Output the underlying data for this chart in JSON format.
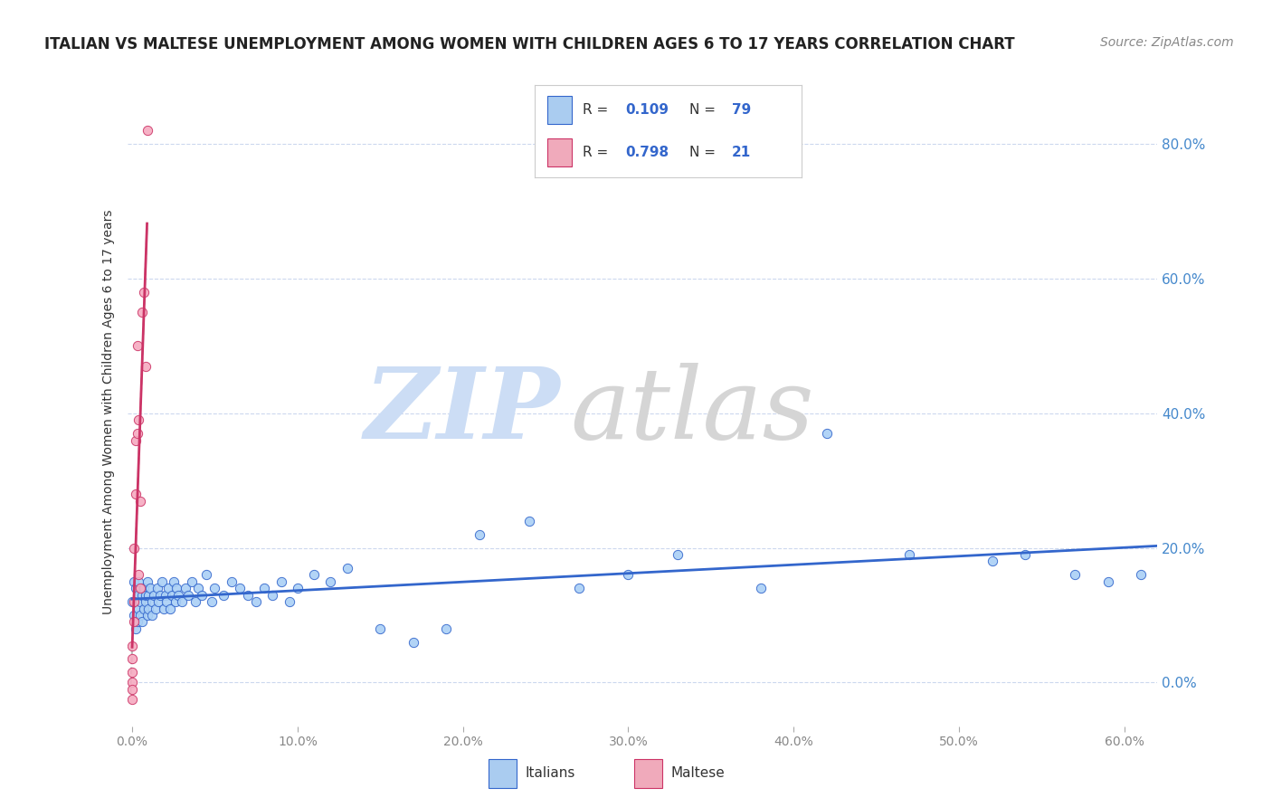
{
  "title": "ITALIAN VS MALTESE UNEMPLOYMENT AMONG WOMEN WITH CHILDREN AGES 6 TO 17 YEARS CORRELATION CHART",
  "source": "Source: ZipAtlas.com",
  "ylabel": "Unemployment Among Women with Children Ages 6 to 17 years",
  "legend_color1": "#aaccf0",
  "legend_color2": "#f0aabb",
  "scatter_color1": "#aad0f5",
  "scatter_color2": "#f5aac0",
  "line_color1": "#3366cc",
  "line_color2": "#cc3366",
  "dashed_line_color": "#bbbbbb",
  "watermark_zip_color": "#ccddf5",
  "watermark_atlas_color": "#d5d5d5",
  "background_color": "#ffffff",
  "grid_color": "#ccd8ee",
  "title_fontsize": 12,
  "source_fontsize": 10,
  "right_tick_color": "#4488cc",
  "xlim": [
    -0.003,
    0.62
  ],
  "ylim": [
    -0.065,
    0.87
  ],
  "italian_x": [
    0.0,
    0.001,
    0.001,
    0.002,
    0.002,
    0.003,
    0.003,
    0.004,
    0.004,
    0.005,
    0.005,
    0.006,
    0.006,
    0.007,
    0.007,
    0.008,
    0.008,
    0.009,
    0.009,
    0.01,
    0.01,
    0.011,
    0.012,
    0.012,
    0.013,
    0.014,
    0.015,
    0.016,
    0.017,
    0.018,
    0.019,
    0.02,
    0.021,
    0.022,
    0.023,
    0.024,
    0.025,
    0.026,
    0.027,
    0.028,
    0.03,
    0.032,
    0.034,
    0.036,
    0.038,
    0.04,
    0.042,
    0.045,
    0.048,
    0.05,
    0.055,
    0.06,
    0.065,
    0.07,
    0.075,
    0.08,
    0.085,
    0.09,
    0.095,
    0.1,
    0.11,
    0.12,
    0.13,
    0.15,
    0.17,
    0.19,
    0.21,
    0.24,
    0.27,
    0.3,
    0.33,
    0.38,
    0.42,
    0.47,
    0.52,
    0.54,
    0.57,
    0.59,
    0.61
  ],
  "italian_y": [
    0.12,
    0.1,
    0.15,
    0.08,
    0.14,
    0.09,
    0.13,
    0.11,
    0.15,
    0.1,
    0.12,
    0.13,
    0.09,
    0.11,
    0.14,
    0.12,
    0.13,
    0.1,
    0.15,
    0.11,
    0.13,
    0.14,
    0.12,
    0.1,
    0.13,
    0.11,
    0.14,
    0.12,
    0.13,
    0.15,
    0.11,
    0.13,
    0.12,
    0.14,
    0.11,
    0.13,
    0.15,
    0.12,
    0.14,
    0.13,
    0.12,
    0.14,
    0.13,
    0.15,
    0.12,
    0.14,
    0.13,
    0.16,
    0.12,
    0.14,
    0.13,
    0.15,
    0.14,
    0.13,
    0.12,
    0.14,
    0.13,
    0.15,
    0.12,
    0.14,
    0.16,
    0.15,
    0.17,
    0.08,
    0.06,
    0.08,
    0.22,
    0.24,
    0.14,
    0.16,
    0.19,
    0.14,
    0.37,
    0.19,
    0.18,
    0.19,
    0.16,
    0.15,
    0.16
  ],
  "maltese_x": [
    0.0,
    0.0,
    0.0,
    0.0,
    0.0,
    0.0,
    0.001,
    0.001,
    0.001,
    0.002,
    0.002,
    0.003,
    0.003,
    0.004,
    0.004,
    0.005,
    0.005,
    0.006,
    0.007,
    0.008,
    0.009
  ],
  "maltese_y": [
    0.0,
    0.015,
    0.035,
    0.055,
    -0.01,
    -0.025,
    0.09,
    0.12,
    0.2,
    0.28,
    0.36,
    0.5,
    0.37,
    0.39,
    0.16,
    0.14,
    0.27,
    0.55,
    0.58,
    0.47,
    0.82
  ]
}
